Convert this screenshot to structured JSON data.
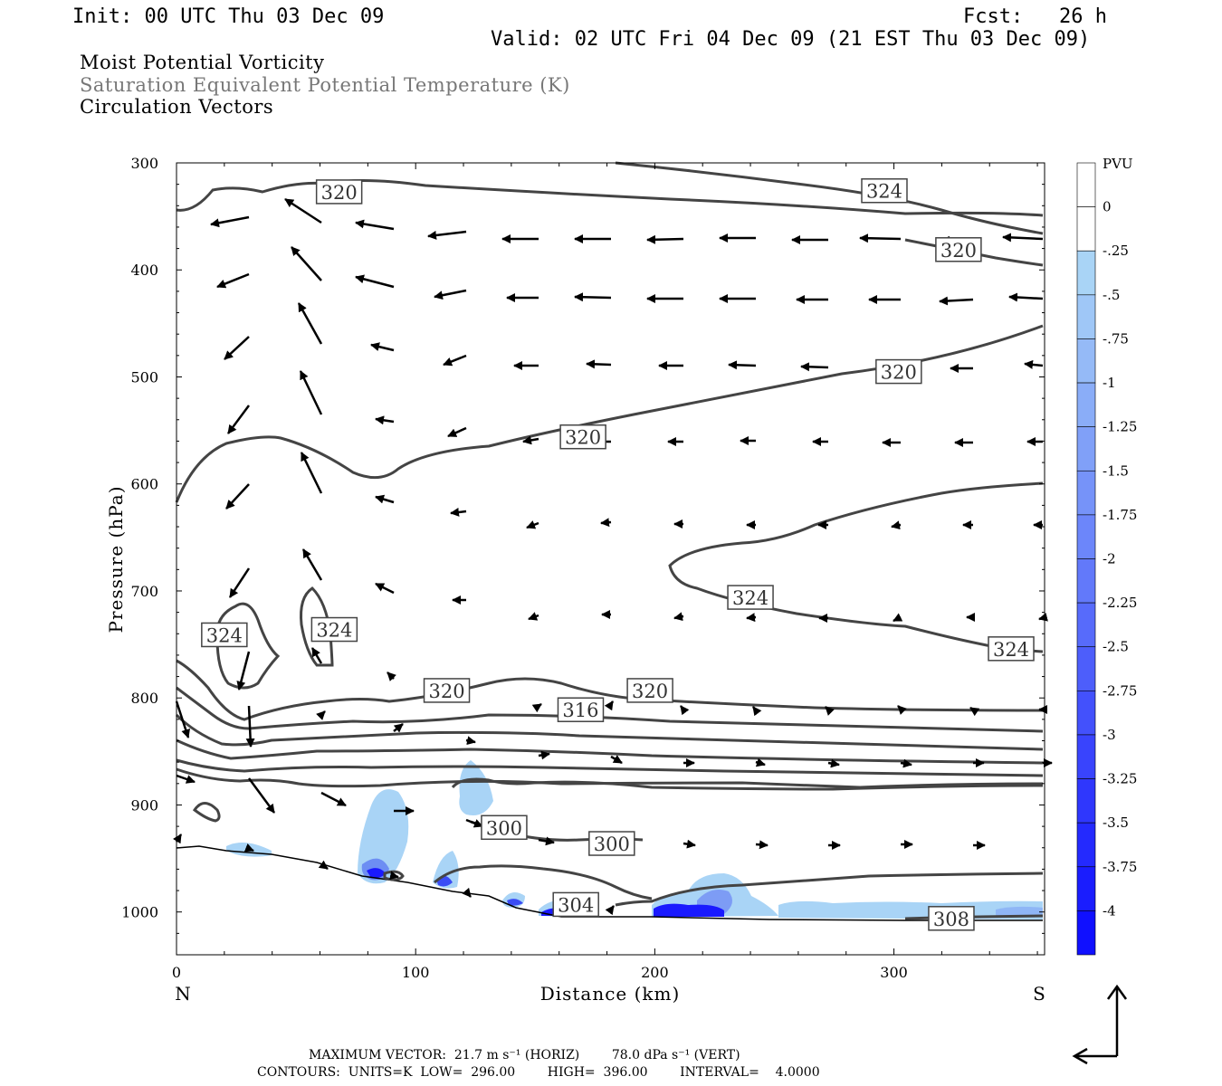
{
  "header": {
    "init": "Init: 00 UTC Thu 03 Dec 09",
    "fcst": "Fcst:   26 h",
    "valid": "Valid: 02 UTC Fri 04 Dec 09 (21 EST Thu 03 Dec 09)"
  },
  "titles": {
    "line1": "Moist Potential Vorticity",
    "line2": "Saturation Equivalent Potential Temperature (K)",
    "line3": "Circulation Vectors"
  },
  "footer": {
    "line1": "MAXIMUM VECTOR:  21.7 m s⁻¹ (HORIZ)        78.0 dPa s⁻¹ (VERT)",
    "line2": "CONTOURS:  UNITS=K  LOW=  296.00        HIGH=  396.00        INTERVAL=    4.0000"
  },
  "colors": {
    "contour": "#444444",
    "pv_light": "#a9d4f6",
    "pv_dark": "#1010ff"
  },
  "chart_data": {
    "type": "contour",
    "xlabel": "Distance (km)",
    "ylabel": "Pressure (hPa)",
    "xlim": [
      0,
      363
    ],
    "ylim": [
      1040,
      300
    ],
    "xticks": [
      0,
      100,
      200,
      300
    ],
    "yticks": [
      300,
      400,
      500,
      600,
      700,
      800,
      900,
      1000
    ],
    "x_end_labels": {
      "left": "N",
      "right": "S"
    },
    "colorbar": {
      "label": "PVU",
      "levels": [
        "0",
        "-.25",
        "-.5",
        "-.75",
        "-1",
        "-1.25",
        "-1.5",
        "-1.75",
        "-2",
        "-2.25",
        "-2.5",
        "-2.75",
        "-3",
        "-3.25",
        "-3.5",
        "-3.75",
        "-4"
      ]
    },
    "contour_labels": [
      {
        "text": "320",
        "x": 68,
        "p": 327
      },
      {
        "text": "324",
        "x": 296,
        "p": 326
      },
      {
        "text": "320",
        "x": 327,
        "p": 381
      },
      {
        "text": "320",
        "x": 302,
        "p": 495
      },
      {
        "text": "320",
        "x": 170,
        "p": 556
      },
      {
        "text": "324",
        "x": 240,
        "p": 706
      },
      {
        "text": "324",
        "x": 20,
        "p": 741
      },
      {
        "text": "324",
        "x": 66,
        "p": 736
      },
      {
        "text": "324",
        "x": 349,
        "p": 754
      },
      {
        "text": "320",
        "x": 113,
        "p": 793
      },
      {
        "text": "320",
        "x": 198,
        "p": 793
      },
      {
        "text": "316",
        "x": 169,
        "p": 811
      },
      {
        "text": "300",
        "x": 137,
        "p": 921
      },
      {
        "text": "300",
        "x": 182,
        "p": 936
      },
      {
        "text": "304",
        "x": 167,
        "p": 993
      },
      {
        "text": "308",
        "x": 324,
        "p": 1006
      }
    ]
  }
}
